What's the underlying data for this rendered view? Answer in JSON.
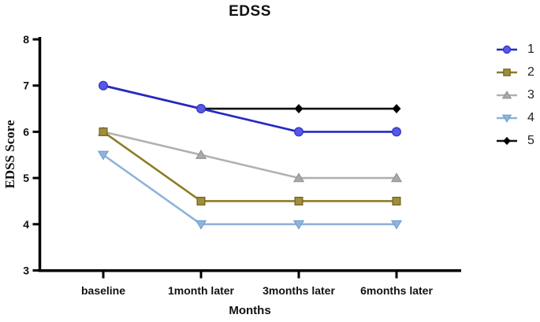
{
  "chart_data": {
    "type": "line",
    "title": "EDSS",
    "xlabel": "Months",
    "ylabel": "EDSS Score",
    "categories": [
      "baseline",
      "1month later",
      "3months later",
      "6months later"
    ],
    "ylim": [
      3,
      8
    ],
    "yticks": [
      3,
      4,
      5,
      6,
      7,
      8
    ],
    "grid": false,
    "legend_position": "right-outside",
    "axis_color": "#000000",
    "background": "#ffffff",
    "draw_order": [
      "5",
      "4",
      "3",
      "2",
      "1"
    ],
    "series": [
      {
        "name": "1",
        "marker": "circle",
        "values": [
          7.0,
          6.5,
          6.0,
          6.0
        ],
        "line_color": "#2628c6",
        "marker_fill": "#575ae1",
        "marker_edge": "#2e31c9"
      },
      {
        "name": "2",
        "marker": "square",
        "values": [
          6.0,
          4.5,
          4.5,
          4.5
        ],
        "line_color": "#8d7d26",
        "marker_fill": "#9e8e3e",
        "marker_edge": "#6e6218"
      },
      {
        "name": "3",
        "marker": "triangle-up",
        "values": [
          6.0,
          5.5,
          5.0,
          5.0
        ],
        "line_color": "#b1b1b1",
        "marker_fill": "#a9a9a9",
        "marker_edge": "#8f8f8f"
      },
      {
        "name": "4",
        "marker": "triangle-down",
        "values": [
          5.5,
          4.0,
          4.0,
          4.0
        ],
        "line_color": "#90b2da",
        "marker_fill": "#8fb4de",
        "marker_edge": "#6e99cb"
      },
      {
        "name": "5",
        "marker": "diamond",
        "values": [
          7.0,
          6.5,
          6.5,
          6.5
        ],
        "line_color": "#101010",
        "marker_fill": "#000000",
        "marker_edge": "#000000"
      }
    ]
  }
}
